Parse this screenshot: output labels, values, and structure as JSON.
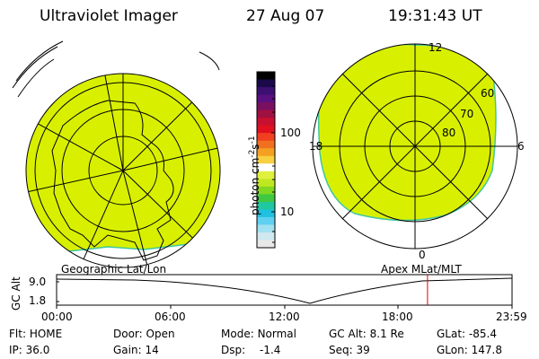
{
  "header": {
    "instrument": "Ultraviolet Imager",
    "date": "27 Aug 07",
    "time": "19:31:43 UT"
  },
  "colorbar": {
    "label": "photon cm",
    "label_exp1": "-2",
    "label_s": "s",
    "label_exp2": "-1",
    "ticks": [
      "100",
      "10"
    ],
    "colors": [
      "#000000",
      "#1a0a4a",
      "#3b1070",
      "#5a1080",
      "#7a1060",
      "#a01040",
      "#c81030",
      "#e01020",
      "#f04020",
      "#f07020",
      "#f4a020",
      "#f8d040",
      "#ffffff",
      "#e0f040",
      "#c0e820",
      "#80d820",
      "#40c840",
      "#20c8a0",
      "#20c0e0",
      "#60d0f0",
      "#a0e0f0",
      "#d0e8f0",
      "#e8e8e8"
    ],
    "accent_fill": "#d8f000"
  },
  "left_map": {
    "label": "Geographic Lat/Lon"
  },
  "right_map": {
    "label": "Apex MLat/MLT",
    "mlt_labels": {
      "top": "12",
      "left": "18",
      "right": "6",
      "bottom": "0"
    },
    "lat_labels": [
      "60",
      "70",
      "80"
    ]
  },
  "altitude_plot": {
    "ylabel": "GC Alt",
    "yticks": [
      "9.0",
      "1.8"
    ],
    "xticks": [
      "00:00",
      "06:00",
      "12:00",
      "18:00",
      "23:59"
    ],
    "current_time_marker_hours": 19.53
  },
  "status": {
    "row1": [
      {
        "label": "Flt:",
        "value": "HOME"
      },
      {
        "label": "Door:",
        "value": "Open"
      },
      {
        "label": "Mode:",
        "value": "Normal"
      },
      {
        "label": "GC Alt:",
        "value": "8.1 Re"
      },
      {
        "label": "GLat:",
        "value": "-85.4"
      }
    ],
    "row2": [
      {
        "label": "IP:",
        "value": "36.0"
      },
      {
        "label": "Gain:",
        "value": "14"
      },
      {
        "label": "Dsp:",
        "value": "-1.4"
      },
      {
        "label": "Seq:",
        "value": "39"
      },
      {
        "label": "GLon:",
        "value": "147.8"
      }
    ]
  }
}
